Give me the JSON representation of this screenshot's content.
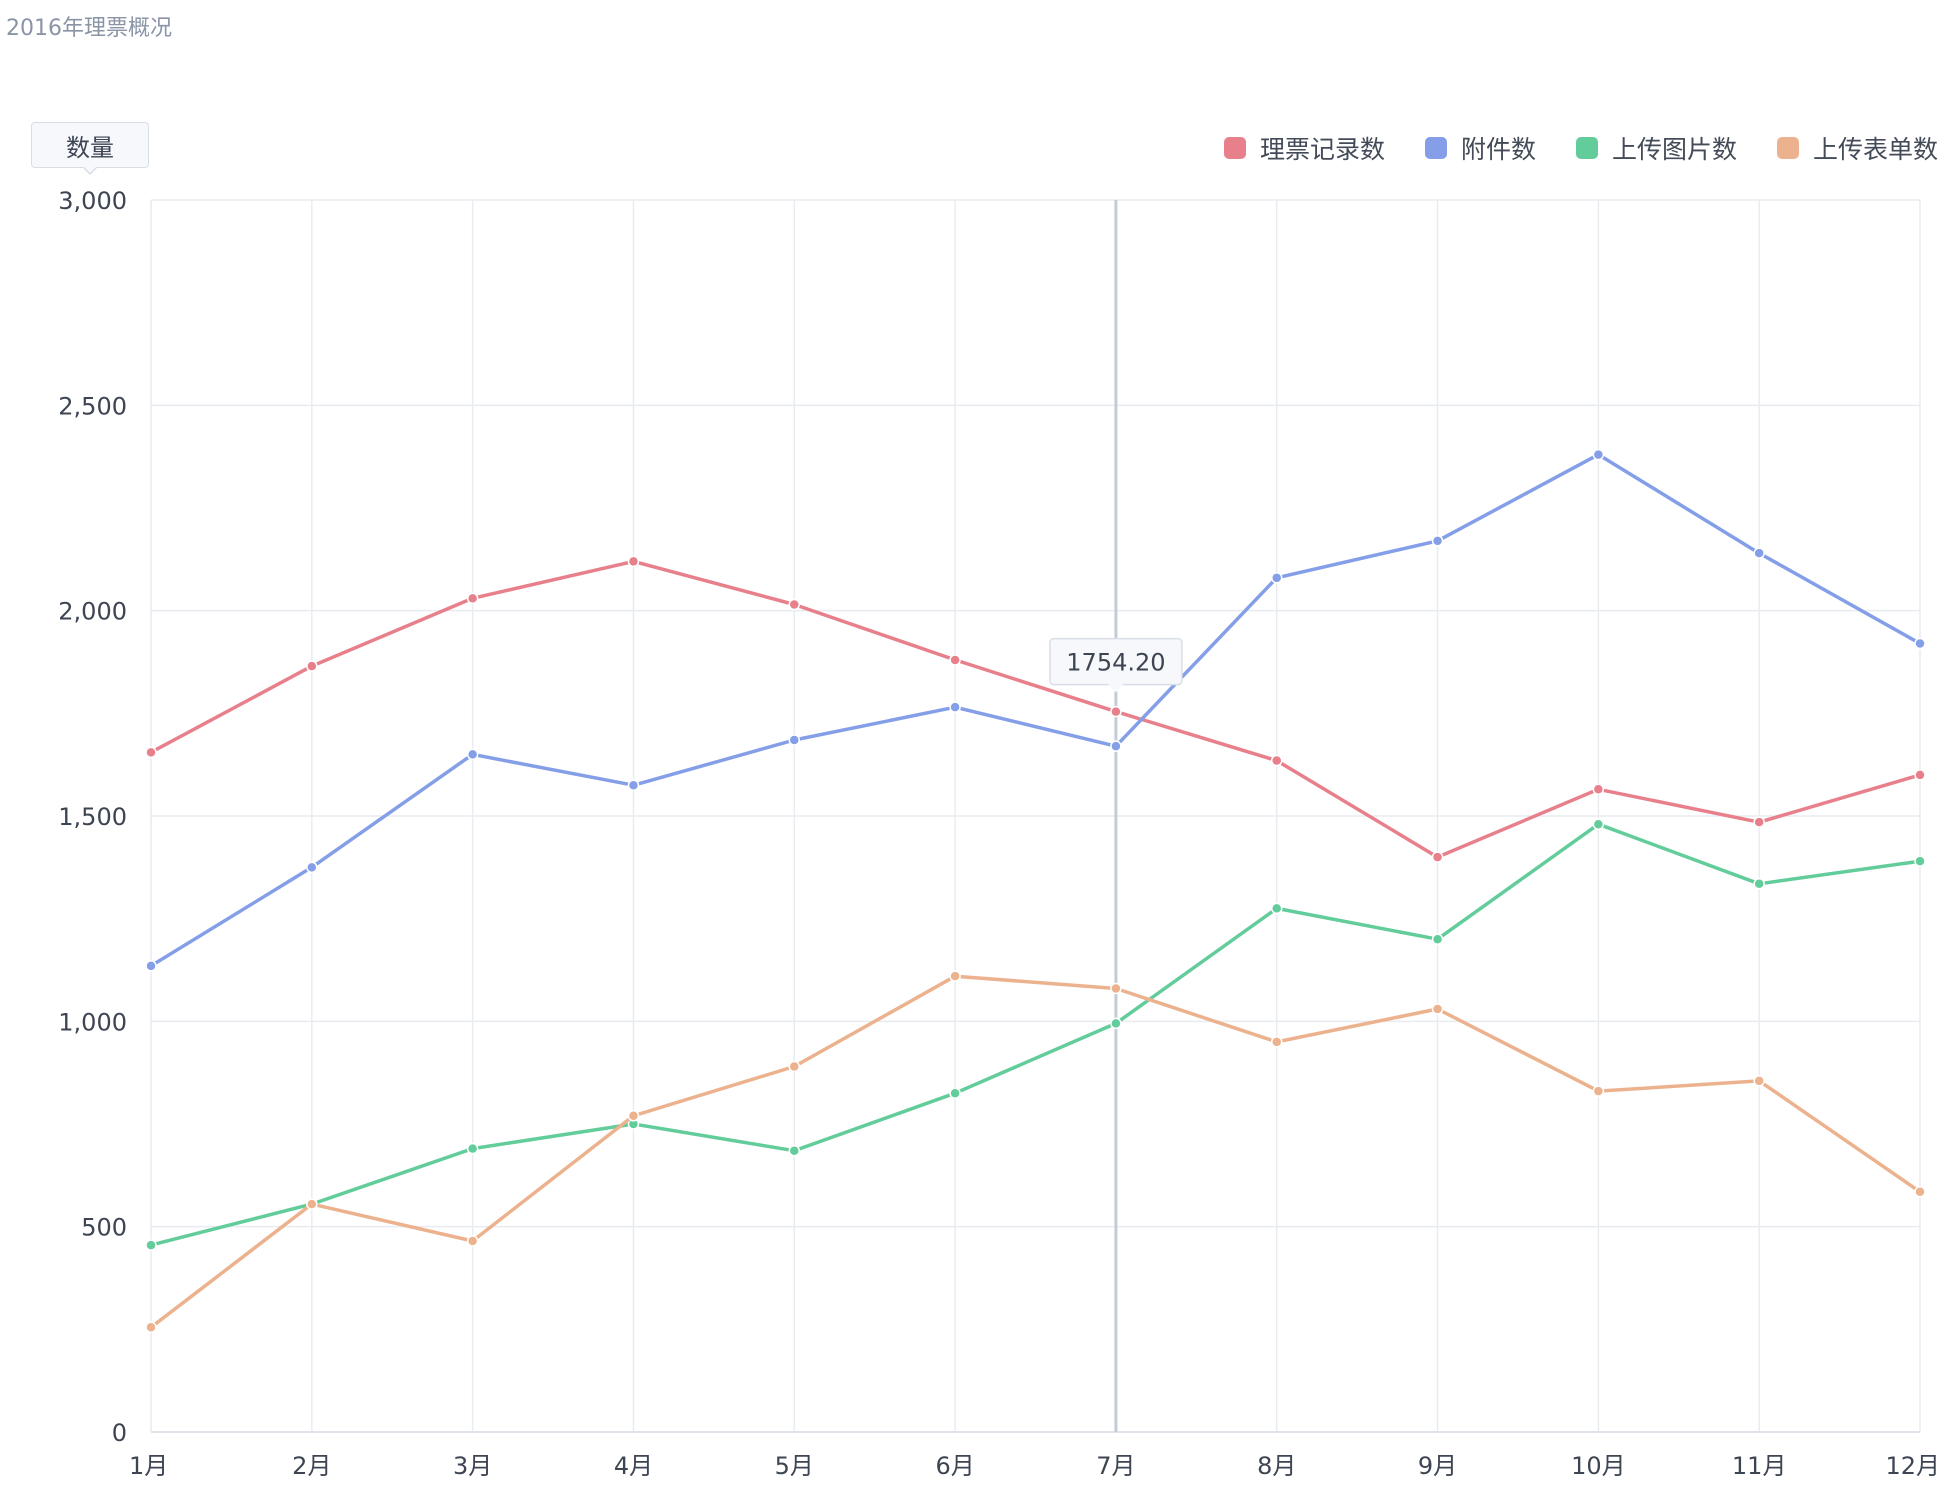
{
  "page": {
    "title": "2016年理票概况"
  },
  "chart_data": {
    "type": "line",
    "ylabel": "数量",
    "categories": [
      "1月",
      "2月",
      "3月",
      "4月",
      "5月",
      "6月",
      "7月",
      "8月",
      "9月",
      "10月",
      "11月",
      "12月"
    ],
    "ylim": [
      0,
      3000
    ],
    "yticks": [
      0,
      500,
      1000,
      1500,
      2000,
      2500,
      3000
    ],
    "ytick_labels": [
      "0",
      "500",
      "1,000",
      "1,500",
      "2,000",
      "2,500",
      "3,000"
    ],
    "grid": true,
    "legend_position": "top-right",
    "series": [
      {
        "name": "理票记录数",
        "color": "#e8808c",
        "values": [
          1655,
          1865,
          2030,
          2120,
          2015,
          1880,
          1754.2,
          1635,
          1400,
          1565,
          1485,
          1600
        ]
      },
      {
        "name": "附件数",
        "color": "#849fe8",
        "values": [
          1135,
          1375,
          1650,
          1575,
          1685,
          1765,
          1670,
          2080,
          2170,
          2380,
          2140,
          1920
        ]
      },
      {
        "name": "上传图片数",
        "color": "#62cc9a",
        "values": [
          455,
          555,
          690,
          750,
          685,
          825,
          995,
          1275,
          1200,
          1480,
          1335,
          1390
        ]
      },
      {
        "name": "上传表单数",
        "color": "#ecb28e",
        "values": [
          255,
          555,
          465,
          770,
          890,
          1110,
          1080,
          950,
          1030,
          830,
          855,
          585
        ]
      }
    ],
    "hover": {
      "category_index": 6,
      "series_index": 0,
      "label": "1754.20"
    }
  }
}
